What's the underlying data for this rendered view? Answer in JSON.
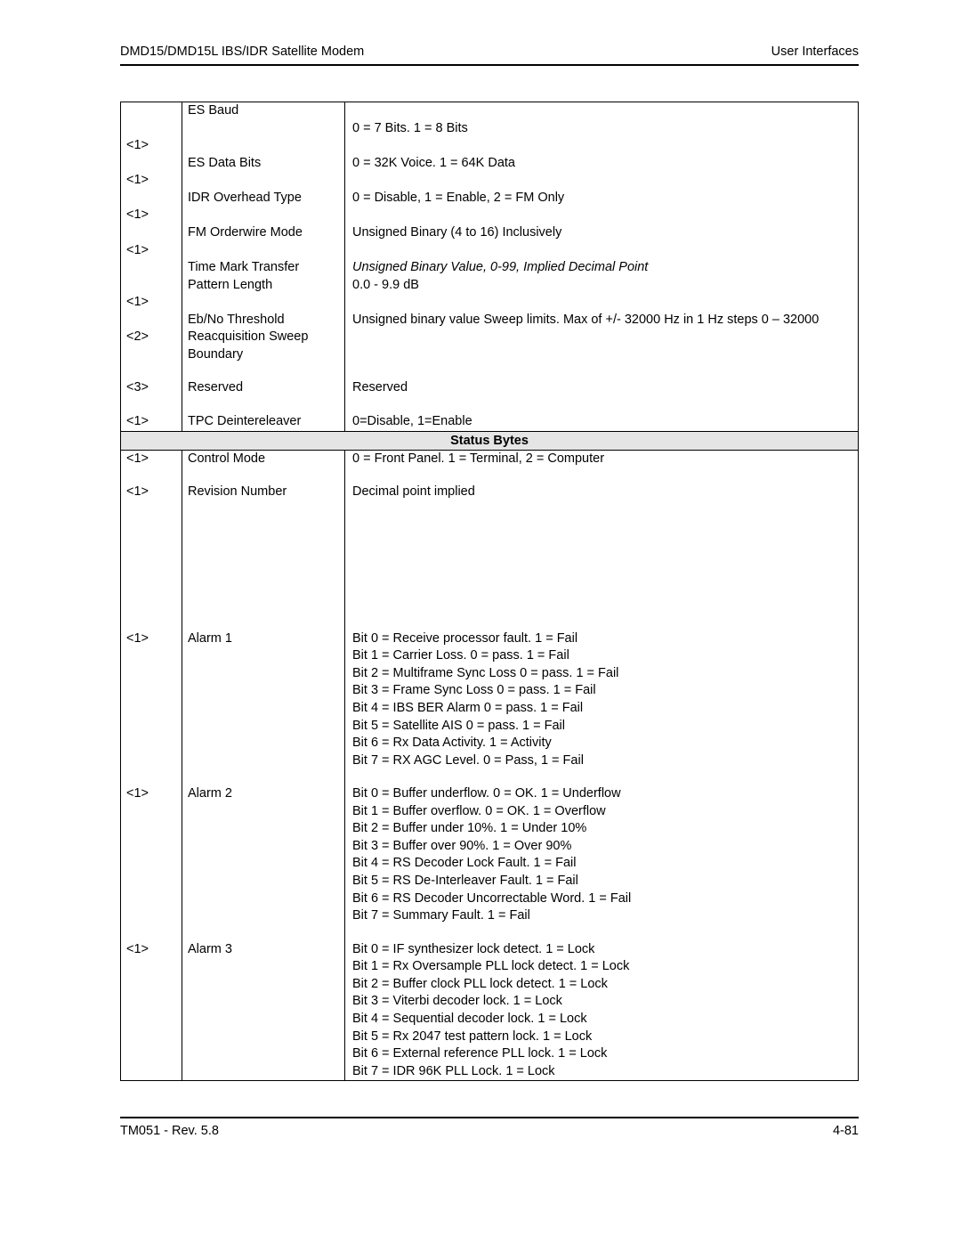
{
  "header": {
    "left": "DMD15/DMD15L IBS/IDR Satellite Modem",
    "right": "User Interfaces"
  },
  "footer": {
    "left": "TM051 - Rev. 5.8",
    "right": "4-81"
  },
  "section1": [
    {
      "code": "",
      "name": "ES Baud",
      "desc": "\n0 = 7 Bits. 1 = 8 Bits"
    },
    {
      "code": "<1>",
      "name": "",
      "desc": ""
    },
    {
      "code": "",
      "name": "ES Data Bits",
      "desc": "0 = 32K Voice. 1 = 64K Data"
    },
    {
      "code": "<1>",
      "name": "",
      "desc": ""
    },
    {
      "code": "",
      "name": "IDR Overhead Type",
      "desc": "0 = Disable, 1 = Enable, 2 = FM Only"
    },
    {
      "code": "<1>",
      "name": "",
      "desc": ""
    },
    {
      "code": "",
      "name": "FM Orderwire Mode",
      "desc": "Unsigned Binary (4 to 16) Inclusively"
    },
    {
      "code": "<1>",
      "name": "",
      "desc": ""
    },
    {
      "code": "",
      "name": "Time Mark Transfer Pattern Length",
      "desc": "Unsigned Binary Value, 0-99, Implied Decimal Point         \n0.0  - 9.9 dB",
      "descItalic": true
    },
    {
      "code": "<1>",
      "name": "",
      "desc": ""
    },
    {
      "code": "",
      "name": "Eb/No Threshold",
      "desc": "Unsigned binary value Sweep limits. Max of +/- 32000 Hz in 1 Hz steps 0 – 32000"
    },
    {
      "code": "<2>",
      "name": "Reacquisition Sweep Boundary",
      "desc": ""
    },
    {
      "code": "",
      "name": "",
      "desc": "",
      "spacer": true
    },
    {
      "code": "<3>",
      "name": "Reserved",
      "desc": "Reserved"
    },
    {
      "code": "",
      "name": "",
      "desc": "",
      "spacer": true
    },
    {
      "code": "<1>",
      "name": "TPC Deintereleaver",
      "desc": "0=Disable, 1=Enable"
    }
  ],
  "sectionHeader": "Status Bytes",
  "section2": [
    {
      "code": "<1>",
      "name": "Control Mode",
      "desc": "0 = Front Panel. 1 = Terminal, 2 = Computer"
    },
    {
      "code": "",
      "name": "",
      "desc": "",
      "spacer": true
    },
    {
      "code": "<1>",
      "name": "Revision Number",
      "desc": "Decimal point implied"
    },
    {
      "code": "",
      "name": "",
      "desc": "",
      "tallspacer": true
    },
    {
      "code": "<1>",
      "name": "Alarm 1",
      "desc": "Bit 0 = Receive processor fault. 1 = Fail\nBit 1 = Carrier Loss. 0 = pass. 1 = Fail\nBit 2 = Multiframe Sync Loss 0 = pass. 1 = Fail\nBit 3 = Frame Sync Loss 0 = pass. 1 = Fail\nBit 4 = IBS BER Alarm 0 = pass. 1 = Fail\nBit 5 = Satellite AIS 0 = pass. 1 = Fail\nBit 6 = Rx Data Activity. 1 = Activity\nBit 7 = RX AGC Level. 0 = Pass, 1 = Fail"
    },
    {
      "code": "",
      "name": "",
      "desc": "",
      "spacer": true
    },
    {
      "code": "<1>",
      "name": "Alarm 2",
      "desc": "Bit 0 = Buffer underflow. 0 = OK. 1 = Underflow\nBit 1 = Buffer overflow. 0 = OK. 1 = Overflow\nBit 2 = Buffer under 10%. 1 = Under 10%\nBit 3 = Buffer over 90%. 1 = Over 90%\nBit 4 = RS Decoder Lock Fault. 1 = Fail\nBit 5 = RS De-Interleaver Fault. 1 = Fail\nBit 6 = RS Decoder Uncorrectable Word. 1 = Fail\nBit 7 = Summary Fault. 1 = Fail"
    },
    {
      "code": "",
      "name": "",
      "desc": "",
      "spacer": true
    },
    {
      "code": "<1>",
      "name": "Alarm 3",
      "desc": "Bit 0 = IF synthesizer lock detect. 1 = Lock\nBit 1 = Rx Oversample PLL lock detect. 1 = Lock\nBit 2 = Buffer clock PLL lock detect. 1 = Lock\nBit 3 = Viterbi decoder lock. 1 = Lock\nBit 4 = Sequential decoder lock. 1 = Lock\nBit 5 = Rx 2047 test pattern lock. 1 = Lock\nBit 6 = External reference PLL lock. 1 = Lock\nBit 7 = IDR 96K PLL Lock. 1 = Lock"
    }
  ]
}
